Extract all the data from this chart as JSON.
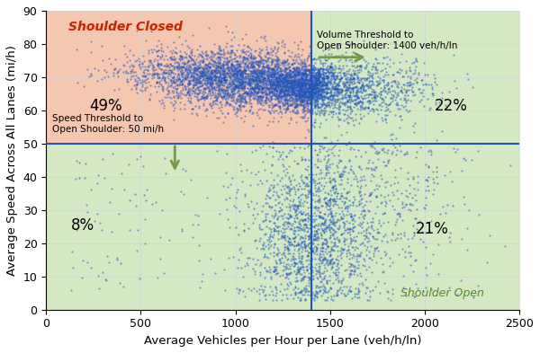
{
  "title": "",
  "xlabel": "Average Vehicles per Hour per Lane (veh/h/ln)",
  "ylabel": "Average Speed Across All Lanes (mi/h)",
  "xlim": [
    0,
    2500
  ],
  "ylim": [
    0,
    90
  ],
  "xticks": [
    0,
    500,
    1000,
    1500,
    2000,
    2500
  ],
  "yticks": [
    0,
    10,
    20,
    30,
    40,
    50,
    60,
    70,
    80,
    90
  ],
  "volume_threshold": 1400,
  "speed_threshold": 50,
  "closed_color": "#f5c6b0",
  "open_color": "#d5e8c4",
  "scatter_color": "#2255bb",
  "scatter_size": 2.5,
  "scatter_alpha": 0.55,
  "vline_color": "#2255bb",
  "hline_color": "#2255bb",
  "closed_label": "Shoulder Closed",
  "closed_label_color": "#cc2200",
  "open_label": "Shoulder Open",
  "open_label_color": "#558833",
  "pct_top_left": "49%",
  "pct_top_right": "22%",
  "pct_bottom_left": "8%",
  "pct_bottom_right": "21%",
  "vol_annotation": "Volume Threshold to\nOpen Shoulder: 1400 veh/h/ln",
  "spd_annotation": "Speed Threshold to\nOpen Shoulder: 50 mi/h",
  "arrow_color": "#779944",
  "seed": 42,
  "n_points": 8000,
  "figsize": [
    6.0,
    3.93
  ],
  "dpi": 100
}
